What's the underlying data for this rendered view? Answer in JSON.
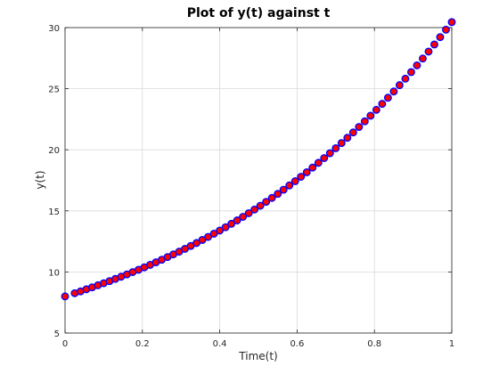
{
  "chart_data": {
    "type": "scatter",
    "title": "Plot of y(t) against t",
    "xlabel": "Time(t)",
    "ylabel": "y(t)",
    "xlim": [
      0,
      1
    ],
    "ylim": [
      5,
      30
    ],
    "xticks": [
      0,
      0.2,
      0.4,
      0.6,
      0.8,
      1
    ],
    "xtick_labels": [
      "0",
      "0.2",
      "0.4",
      "0.6",
      "0.8",
      "1"
    ],
    "yticks": [
      5,
      10,
      15,
      20,
      25,
      30
    ],
    "ytick_labels": [
      "5",
      "10",
      "15",
      "20",
      "25",
      "30"
    ],
    "grid": true,
    "legend": false,
    "marker_face_color": "#ff0000",
    "marker_edge_color": "#0000ff",
    "series": [
      {
        "x": [
          0.0,
          0.025,
          0.04,
          0.055,
          0.07,
          0.085,
          0.1,
          0.115,
          0.13,
          0.145,
          0.16,
          0.175,
          0.19,
          0.205,
          0.22,
          0.235,
          0.25,
          0.265,
          0.28,
          0.295,
          0.31,
          0.325,
          0.34,
          0.355,
          0.37,
          0.385,
          0.4,
          0.415,
          0.43,
          0.445,
          0.46,
          0.475,
          0.49,
          0.505,
          0.52,
          0.535,
          0.55,
          0.565,
          0.58,
          0.595,
          0.61,
          0.625,
          0.64,
          0.655,
          0.67,
          0.685,
          0.7,
          0.715,
          0.73,
          0.745,
          0.76,
          0.775,
          0.79,
          0.805,
          0.82,
          0.835,
          0.85,
          0.865,
          0.88,
          0.895,
          0.91,
          0.925,
          0.94,
          0.955,
          0.97,
          0.985,
          1.0
        ],
        "y": [
          8.0,
          8.26,
          8.41,
          8.58,
          8.74,
          8.91,
          9.08,
          9.25,
          9.43,
          9.61,
          9.8,
          9.99,
          10.18,
          10.38,
          10.58,
          10.79,
          11.0,
          11.22,
          11.44,
          11.66,
          11.89,
          12.13,
          12.37,
          12.62,
          12.87,
          13.13,
          13.39,
          13.66,
          13.94,
          14.22,
          14.51,
          14.81,
          15.11,
          15.42,
          15.74,
          16.06,
          16.39,
          16.73,
          17.08,
          17.43,
          17.79,
          18.16,
          18.54,
          18.93,
          19.32,
          19.72,
          20.13,
          20.55,
          20.98,
          21.42,
          21.87,
          22.33,
          22.79,
          23.27,
          23.76,
          24.26,
          24.77,
          25.29,
          25.82,
          26.36,
          26.91,
          27.47,
          28.04,
          28.62,
          29.22,
          29.83,
          30.45
        ]
      }
    ]
  }
}
